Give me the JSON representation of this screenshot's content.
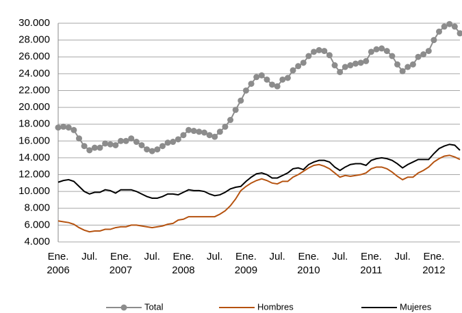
{
  "chart_data": {
    "type": "line",
    "categories": [
      [
        "Ene.",
        "2006"
      ],
      null,
      null,
      null,
      null,
      null,
      [
        "Jul."
      ],
      null,
      null,
      null,
      null,
      null,
      [
        "Ene.",
        "2007"
      ],
      null,
      null,
      null,
      null,
      null,
      [
        "Jul."
      ],
      null,
      null,
      null,
      null,
      null,
      [
        "Ene.",
        "2008"
      ],
      null,
      null,
      null,
      null,
      null,
      [
        "Jul."
      ],
      null,
      null,
      null,
      null,
      null,
      [
        "Ene.",
        "2009"
      ],
      null,
      null,
      null,
      null,
      null,
      [
        "Jul."
      ],
      null,
      null,
      null,
      null,
      null,
      [
        "Ene.",
        "2010"
      ],
      null,
      null,
      null,
      null,
      null,
      [
        "Jul."
      ],
      null,
      null,
      null,
      null,
      null,
      [
        "Ene.",
        "2011"
      ],
      null,
      null,
      null,
      null,
      null,
      [
        "Jul."
      ],
      null,
      null,
      null,
      null,
      null,
      [
        "Ene.",
        "2012"
      ],
      null,
      null,
      null,
      null,
      null
    ],
    "series": [
      {
        "name": "Total",
        "color": "#8c8c8c",
        "markers": true,
        "values": [
          17600,
          17700,
          17600,
          17300,
          16300,
          15400,
          14900,
          15200,
          15200,
          15700,
          15600,
          15500,
          16000,
          16000,
          16300,
          15900,
          15500,
          15000,
          14800,
          15000,
          15400,
          15800,
          15900,
          16200,
          16700,
          17300,
          17200,
          17100,
          17000,
          16700,
          16500,
          17100,
          17700,
          18500,
          19700,
          20800,
          22000,
          22800,
          23600,
          23800,
          23300,
          22700,
          22500,
          23300,
          23500,
          24400,
          24900,
          25300,
          26100,
          26600,
          26800,
          26700,
          26200,
          25000,
          24200,
          24800,
          25000,
          25200,
          25300,
          25500,
          26600,
          26900,
          27000,
          26700,
          26100,
          25100,
          24300,
          24800,
          25100,
          26000,
          26300,
          26700,
          28000,
          29000,
          29600,
          29900,
          29600,
          28800
        ]
      },
      {
        "name": "Hombres",
        "color": "#b5520f",
        "markers": false,
        "values": [
          6500,
          6400,
          6300,
          6100,
          5700,
          5400,
          5200,
          5300,
          5300,
          5500,
          5500,
          5700,
          5800,
          5800,
          6000,
          6000,
          5900,
          5800,
          5700,
          5800,
          5900,
          6100,
          6200,
          6600,
          6700,
          7000,
          7000,
          7000,
          7000,
          7000,
          7000,
          7300,
          7700,
          8300,
          9100,
          10100,
          10600,
          11000,
          11300,
          11500,
          11300,
          11000,
          10900,
          11200,
          11200,
          11700,
          12000,
          12400,
          12800,
          13100,
          13200,
          13000,
          12700,
          12200,
          11700,
          11900,
          11800,
          11900,
          12000,
          12200,
          12700,
          12900,
          12900,
          12700,
          12300,
          11800,
          11400,
          11700,
          11700,
          12200,
          12500,
          12900,
          13500,
          13900,
          14200,
          14300,
          14100,
          13800
        ]
      },
      {
        "name": "Mujeres",
        "color": "#000000",
        "markers": false,
        "values": [
          11100,
          11300,
          11400,
          11200,
          10600,
          10000,
          9700,
          9900,
          9900,
          10200,
          10100,
          9800,
          10200,
          10200,
          10200,
          10000,
          9700,
          9400,
          9200,
          9200,
          9400,
          9700,
          9700,
          9600,
          9900,
          10200,
          10100,
          10100,
          10000,
          9700,
          9500,
          9600,
          9900,
          10300,
          10500,
          10600,
          11200,
          11700,
          12100,
          12200,
          12000,
          11600,
          11600,
          11900,
          12200,
          12700,
          12800,
          12600,
          13200,
          13500,
          13700,
          13700,
          13500,
          12900,
          12500,
          12900,
          13200,
          13300,
          13300,
          13100,
          13700,
          13900,
          14000,
          13900,
          13700,
          13300,
          12800,
          13200,
          13500,
          13800,
          13800,
          13800,
          14500,
          15100,
          15400,
          15600,
          15500,
          14900
        ]
      }
    ],
    "ylim": [
      4000,
      30000
    ],
    "yticks": [
      {
        "value": 4000,
        "label": "4.000"
      },
      {
        "value": 6000,
        "label": "6.000"
      },
      {
        "value": 8000,
        "label": "8.000"
      },
      {
        "value": 10000,
        "label": "10.000"
      },
      {
        "value": 12000,
        "label": "12.000"
      },
      {
        "value": 14000,
        "label": "14.000"
      },
      {
        "value": 16000,
        "label": "16.000"
      },
      {
        "value": 18000,
        "label": "18.000"
      },
      {
        "value": 20000,
        "label": "20.000"
      },
      {
        "value": 22000,
        "label": "22.000"
      },
      {
        "value": 24000,
        "label": "24.000"
      },
      {
        "value": 26000,
        "label": "26.000"
      },
      {
        "value": 28000,
        "label": "28.000"
      },
      {
        "value": 30000,
        "label": "30.000"
      }
    ],
    "grid": true,
    "legend": "bottom"
  }
}
